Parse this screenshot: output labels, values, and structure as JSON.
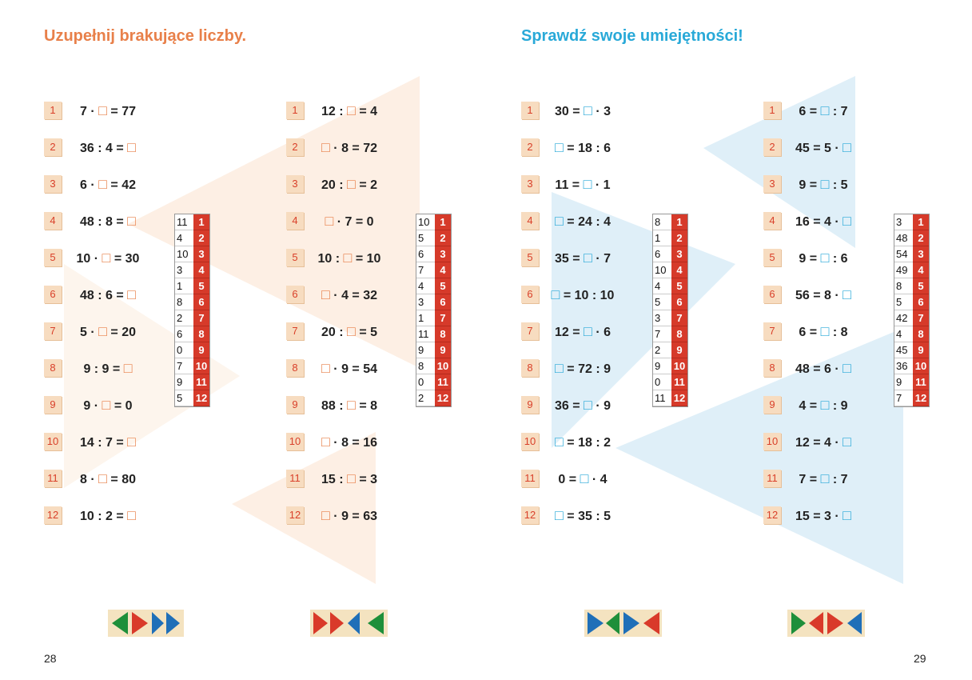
{
  "pages": [
    {
      "title": "Uzupełnij brakujące liczby.",
      "page_number": "28",
      "columns": [
        {
          "exercises": [
            {
              "n": "1",
              "expr": "7 · □ = 77"
            },
            {
              "n": "2",
              "expr": "36 : 4 = □"
            },
            {
              "n": "3",
              "expr": "6 · □ = 42"
            },
            {
              "n": "4",
              "expr": "48 : 8 = □"
            },
            {
              "n": "5",
              "expr": "10 · □ = 30"
            },
            {
              "n": "6",
              "expr": "48 : 6 = □"
            },
            {
              "n": "7",
              "expr": "5 · □ = 20"
            },
            {
              "n": "8",
              "expr": "9 : 9 = □"
            },
            {
              "n": "9",
              "expr": "9 · □ = 0"
            },
            {
              "n": "10",
              "expr": "14 : 7 = □"
            },
            {
              "n": "11",
              "expr": "8 · □ = 80"
            },
            {
              "n": "12",
              "expr": "10 : 2 = □"
            }
          ],
          "answers": [
            {
              "value": "11",
              "n": "1"
            },
            {
              "value": "4",
              "n": "2"
            },
            {
              "value": "10",
              "n": "3"
            },
            {
              "value": "3",
              "n": "4"
            },
            {
              "value": "1",
              "n": "5"
            },
            {
              "value": "8",
              "n": "6"
            },
            {
              "value": "2",
              "n": "7"
            },
            {
              "value": "6",
              "n": "8"
            },
            {
              "value": "0",
              "n": "9"
            },
            {
              "value": "7",
              "n": "10"
            },
            {
              "value": "9",
              "n": "11"
            },
            {
              "value": "5",
              "n": "12"
            }
          ]
        },
        {
          "exercises": [
            {
              "n": "1",
              "expr": "12 : □ = 4"
            },
            {
              "n": "2",
              "expr": "□ · 8 = 72"
            },
            {
              "n": "3",
              "expr": "20 : □ = 2"
            },
            {
              "n": "4",
              "expr": "□ · 7 = 0"
            },
            {
              "n": "5",
              "expr": "10 : □ = 10"
            },
            {
              "n": "6",
              "expr": "□ · 4 = 32"
            },
            {
              "n": "7",
              "expr": "20 : □ = 5"
            },
            {
              "n": "8",
              "expr": "□ · 9 = 54"
            },
            {
              "n": "9",
              "expr": "88 : □ = 8"
            },
            {
              "n": "10",
              "expr": "□ · 8 = 16"
            },
            {
              "n": "11",
              "expr": "15 : □ = 3"
            },
            {
              "n": "12",
              "expr": "□ · 9 = 63"
            }
          ],
          "answers": [
            {
              "value": "10",
              "n": "1"
            },
            {
              "value": "5",
              "n": "2"
            },
            {
              "value": "6",
              "n": "3"
            },
            {
              "value": "7",
              "n": "4"
            },
            {
              "value": "4",
              "n": "5"
            },
            {
              "value": "3",
              "n": "6"
            },
            {
              "value": "1",
              "n": "7"
            },
            {
              "value": "11",
              "n": "8"
            },
            {
              "value": "9",
              "n": "9"
            },
            {
              "value": "8",
              "n": "10"
            },
            {
              "value": "0",
              "n": "11"
            },
            {
              "value": "2",
              "n": "12"
            }
          ]
        }
      ]
    },
    {
      "title": "Sprawdź swoje umiejętności!",
      "page_number": "29",
      "columns": [
        {
          "exercises": [
            {
              "n": "1",
              "expr": "30 = □ · 3"
            },
            {
              "n": "2",
              "expr": "□ = 18 : 6"
            },
            {
              "n": "3",
              "expr": "11 = □ · 1"
            },
            {
              "n": "4",
              "expr": "□ = 24 : 4"
            },
            {
              "n": "5",
              "expr": "35 = □ · 7"
            },
            {
              "n": "6",
              "expr": "□ = 10 : 10"
            },
            {
              "n": "7",
              "expr": "12 = □ · 6"
            },
            {
              "n": "8",
              "expr": "□ = 72 : 9"
            },
            {
              "n": "9",
              "expr": "36 = □ · 9"
            },
            {
              "n": "10",
              "expr": "□ = 18 : 2"
            },
            {
              "n": "11",
              "expr": "0 = □ · 4"
            },
            {
              "n": "12",
              "expr": "□ = 35 : 5"
            }
          ],
          "answers": [
            {
              "value": "8",
              "n": "1"
            },
            {
              "value": "1",
              "n": "2"
            },
            {
              "value": "6",
              "n": "3"
            },
            {
              "value": "10",
              "n": "4"
            },
            {
              "value": "4",
              "n": "5"
            },
            {
              "value": "5",
              "n": "6"
            },
            {
              "value": "3",
              "n": "7"
            },
            {
              "value": "7",
              "n": "8"
            },
            {
              "value": "2",
              "n": "9"
            },
            {
              "value": "9",
              "n": "10"
            },
            {
              "value": "0",
              "n": "11"
            },
            {
              "value": "11",
              "n": "12"
            }
          ]
        },
        {
          "exercises": [
            {
              "n": "1",
              "expr": "6 = □ : 7"
            },
            {
              "n": "2",
              "expr": "45 = 5 · □"
            },
            {
              "n": "3",
              "expr": "9 = □ : 5"
            },
            {
              "n": "4",
              "expr": "16 = 4 · □"
            },
            {
              "n": "5",
              "expr": "9 = □ : 6"
            },
            {
              "n": "6",
              "expr": "56 = 8 · □"
            },
            {
              "n": "7",
              "expr": "6 = □ : 8"
            },
            {
              "n": "8",
              "expr": "48 = 6 · □"
            },
            {
              "n": "9",
              "expr": "4 = □ : 9"
            },
            {
              "n": "10",
              "expr": "12 = 4 · □"
            },
            {
              "n": "11",
              "expr": "7 = □ : 7"
            },
            {
              "n": "12",
              "expr": "15 = 3 · □"
            }
          ],
          "answers": [
            {
              "value": "3",
              "n": "1"
            },
            {
              "value": "48",
              "n": "2"
            },
            {
              "value": "54",
              "n": "3"
            },
            {
              "value": "49",
              "n": "4"
            },
            {
              "value": "8",
              "n": "5"
            },
            {
              "value": "5",
              "n": "6"
            },
            {
              "value": "42",
              "n": "7"
            },
            {
              "value": "4",
              "n": "8"
            },
            {
              "value": "45",
              "n": "9"
            },
            {
              "value": "36",
              "n": "10"
            },
            {
              "value": "9",
              "n": "11"
            },
            {
              "value": "7",
              "n": "12"
            }
          ]
        }
      ]
    }
  ]
}
